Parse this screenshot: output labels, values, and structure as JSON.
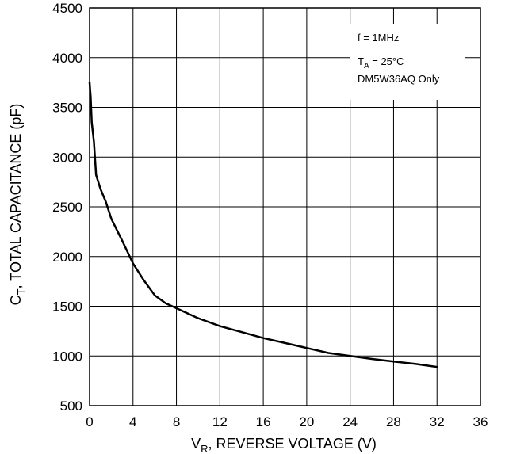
{
  "chart_data": {
    "type": "line",
    "xlabel": {
      "prefix": "V",
      "sub": "R",
      "rest": ", REVERSE VOLTAGE (V)"
    },
    "ylabel": {
      "prefix": "C",
      "sub": "T",
      "rest": ", TOTAL CAPACITANCE (pF)"
    },
    "xlim": [
      0,
      36
    ],
    "ylim": [
      500,
      4500
    ],
    "xticks": [
      "0",
      "4",
      "8",
      "12",
      "16",
      "20",
      "24",
      "28",
      "32",
      "36"
    ],
    "yticks": [
      "500",
      "1000",
      "1500",
      "2000",
      "2500",
      "3000",
      "3500",
      "4000",
      "4500"
    ],
    "grid": true,
    "annotation": {
      "line1": "f = 1MHz",
      "line2_prefix": "T",
      "line2_sub": "A",
      "line2_rest": " = 25°C",
      "line3": "DM5W36AQ  Only"
    },
    "series": [
      {
        "color": "#000000",
        "x": [
          0,
          0.1,
          0.2,
          0.4,
          0.6,
          1,
          1.5,
          2,
          3,
          4,
          5,
          6,
          7,
          8,
          10,
          12,
          14,
          16,
          18,
          20,
          22,
          24,
          26,
          28,
          30,
          32
        ],
        "y": [
          3750,
          3600,
          3350,
          3150,
          2820,
          2680,
          2550,
          2380,
          2160,
          1930,
          1760,
          1610,
          1530,
          1480,
          1380,
          1300,
          1240,
          1180,
          1130,
          1080,
          1030,
          1000,
          970,
          945,
          920,
          890
        ]
      }
    ]
  }
}
